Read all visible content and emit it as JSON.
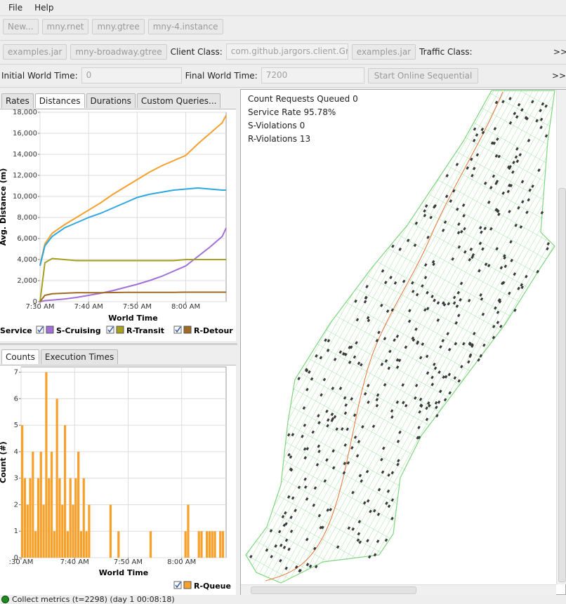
{
  "menu": [
    "File",
    "Help"
  ],
  "toolbar": {
    "buttons": [
      "New...",
      "mny.rnet",
      "mny.gtree",
      "mny-4.instance"
    ]
  },
  "client_row": {
    "buttons": [
      "examples.jar",
      "mny-broadway.gtree"
    ],
    "client_label": "Client Class:",
    "client_field": "com.github.jargors.client.Gre",
    "client_button": "examples.jar",
    "traffic_label": "Traffic Class:",
    "more": ">>"
  },
  "time_row": {
    "initial_label": "Initial World Time:",
    "initial_field": "0",
    "final_label": "Final World Time:",
    "final_field": "7200",
    "start_button": "Start Online Sequential",
    "more": ">>"
  },
  "metric_tabs": [
    "Rates",
    "Distances",
    "Durations",
    "Custom Queries..."
  ],
  "count_tabs": [
    "Counts",
    "Execution Times"
  ],
  "chart_data": [
    {
      "type": "line",
      "x_label": "World Time",
      "y_label": "Avg. Distance (m)",
      "x": [
        0,
        60,
        150,
        300,
        450,
        600,
        750,
        900,
        1050,
        1200,
        1350,
        1500,
        1650,
        1800,
        1950,
        2100,
        2250,
        2298
      ],
      "xlim": [
        0,
        2298
      ],
      "ylim": [
        0,
        18000
      ],
      "xticks": [
        {
          "value": 0,
          "label": "7:30 AM"
        },
        {
          "value": 600,
          "label": "7:40 AM"
        },
        {
          "value": 1200,
          "label": "7:50 AM"
        },
        {
          "value": 1800,
          "label": "8:00 AM"
        }
      ],
      "yticks": [
        0,
        {
          "value": 2000,
          "label": "2,000"
        },
        {
          "value": 4000,
          "label": "4,000"
        },
        {
          "value": 6000,
          "label": "6,000"
        },
        {
          "value": 8000,
          "label": "8,000"
        },
        {
          "value": 10000,
          "label": "10,000"
        },
        {
          "value": 12000,
          "label": "12,000"
        },
        {
          "value": 14000,
          "label": "14,000"
        },
        {
          "value": 16000,
          "label": "16,000"
        },
        {
          "value": 18000,
          "label": "18,000"
        }
      ],
      "grid": true,
      "series": [
        {
          "color": "#f5a030",
          "values": [
            3500,
            5500,
            6500,
            7300,
            8000,
            8700,
            9400,
            10200,
            10900,
            11600,
            12300,
            12900,
            13400,
            13900,
            15000,
            16000,
            17000,
            17700
          ]
        },
        {
          "name": "Service",
          "color": "#2ea8df",
          "values": [
            3400,
            5300,
            6200,
            7000,
            7500,
            8000,
            8400,
            8900,
            9400,
            9900,
            10200,
            10400,
            10600,
            10700,
            10800,
            10700,
            10600,
            10600
          ]
        },
        {
          "name": "S-Cruising",
          "color": "#a070d8",
          "values": [
            0,
            100,
            150,
            250,
            400,
            600,
            800,
            1050,
            1350,
            1650,
            2000,
            2400,
            2900,
            3400,
            4300,
            5200,
            6200,
            7000
          ]
        },
        {
          "name": "R-Transit",
          "color": "#a7a020",
          "values": [
            0,
            3700,
            4100,
            4000,
            3900,
            3900,
            3900,
            3900,
            3900,
            3900,
            3900,
            3900,
            3900,
            4000,
            4000,
            4000,
            4000,
            4000
          ]
        },
        {
          "name": "R-Detour",
          "color": "#a06a20",
          "values": [
            0,
            600,
            750,
            800,
            850,
            850,
            850,
            870,
            880,
            880,
            880,
            880,
            880,
            900,
            900,
            900,
            900,
            900
          ]
        }
      ]
    },
    {
      "type": "bar",
      "x_label": "World Time",
      "y_label": "Count (#)",
      "x": [
        0,
        30,
        60,
        90,
        120,
        150,
        180,
        210,
        240,
        270,
        300,
        330,
        360,
        390,
        420,
        450,
        480,
        510,
        540,
        570,
        600,
        630,
        660,
        690,
        720,
        750,
        780,
        810,
        840,
        870,
        900,
        930,
        960,
        990,
        1020,
        1050,
        1080,
        1110,
        1140,
        1170,
        1200,
        1230,
        1260,
        1290,
        1320,
        1350,
        1380,
        1410,
        1440,
        1470,
        1500,
        1530,
        1560,
        1590,
        1620,
        1650,
        1680,
        1710,
        1740,
        1770,
        1800,
        1830,
        1860,
        1890,
        1920,
        1950,
        1980,
        2010,
        2040,
        2070,
        2100,
        2130,
        2160,
        2190,
        2220,
        2250,
        2280
      ],
      "xlim": [
        0,
        2298
      ],
      "ylim": [
        0,
        7.2
      ],
      "xticks": [
        {
          "value": 0,
          "label": ":30 AM"
        },
        {
          "value": 600,
          "label": "7:40 AM"
        },
        {
          "value": 1200,
          "label": "7:50 AM"
        },
        {
          "value": 1800,
          "label": "8:00 AM"
        }
      ],
      "yticks": [
        0,
        1,
        2,
        3,
        4,
        5,
        6,
        7
      ],
      "grid": true,
      "series": [
        {
          "name": "R-Queue",
          "color": "#f7a02a",
          "values": [
            5,
            3,
            2,
            3,
            4,
            1,
            3,
            4,
            2,
            7,
            3,
            4,
            1,
            6,
            3,
            2,
            5,
            1,
            3,
            2,
            3,
            4,
            1,
            3,
            1,
            2,
            0,
            0,
            0,
            0,
            0,
            0,
            0,
            2,
            0,
            0,
            1,
            0,
            0,
            0,
            0,
            0,
            0,
            0,
            0,
            0,
            0,
            0,
            1,
            0,
            0,
            0,
            0,
            0,
            0,
            0,
            0,
            0,
            0,
            0,
            0,
            1,
            2,
            0,
            0,
            0,
            1,
            1,
            0,
            1,
            1,
            1,
            1,
            0,
            1,
            1,
            0
          ]
        }
      ]
    }
  ],
  "map_stats": [
    "Count Requests Queued 0",
    "Service Rate 95.78%",
    "S-Violations 0",
    "R-Violations 13"
  ],
  "status": "Collect metrics (t=2298) (day 1 00:08:18)"
}
